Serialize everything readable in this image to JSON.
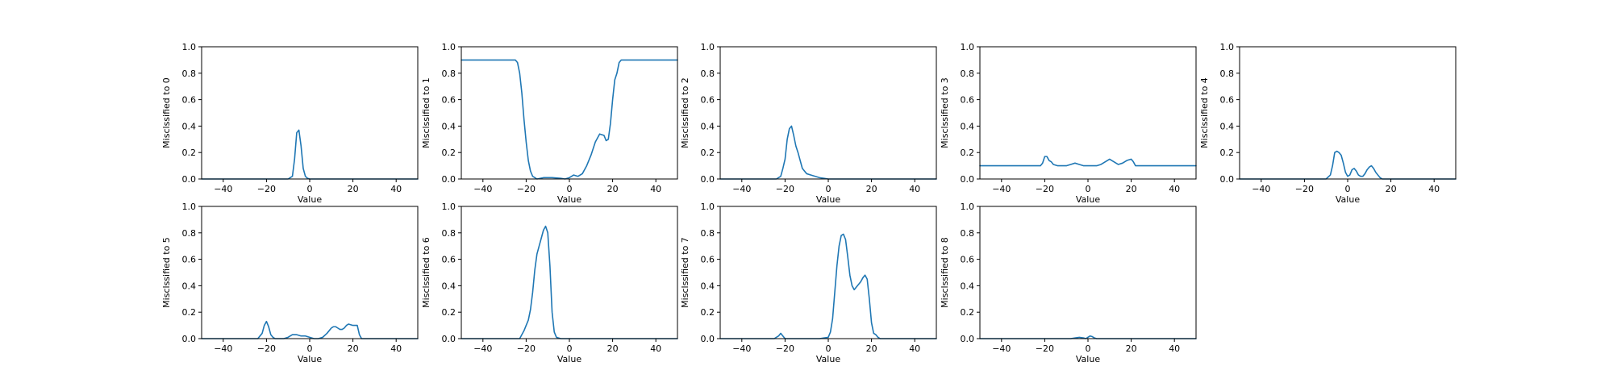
{
  "figure": {
    "line_color": "#1f77b4"
  },
  "chart_data": [
    {
      "type": "line",
      "xlabel": "Value",
      "ylabel": "Misclssified to 0",
      "xlim": [
        -50,
        50
      ],
      "ylim": [
        0,
        1.0
      ],
      "xticks": [
        -40,
        -20,
        0,
        20,
        40
      ],
      "yticks": [
        0.0,
        0.2,
        0.4,
        0.6,
        0.8,
        1.0
      ],
      "series": [
        {
          "x": [
            -50,
            -10,
            -8,
            -7,
            -6,
            -5,
            -4,
            -3,
            -2,
            -1,
            0,
            50
          ],
          "y": [
            0,
            0,
            0.02,
            0.15,
            0.35,
            0.37,
            0.25,
            0.08,
            0.02,
            0.005,
            0,
            0
          ]
        }
      ]
    },
    {
      "type": "line",
      "xlabel": "Value",
      "ylabel": "Misclssified to 1",
      "xlim": [
        -50,
        50
      ],
      "ylim": [
        0,
        1.0
      ],
      "xticks": [
        -40,
        -20,
        0,
        20,
        40
      ],
      "yticks": [
        0.0,
        0.2,
        0.4,
        0.6,
        0.8,
        1.0
      ],
      "series": [
        {
          "x": [
            -50,
            -25,
            -24,
            -23,
            -22,
            -21,
            -20,
            -19,
            -18,
            -17,
            -16,
            -15,
            -12,
            -8,
            -4,
            -2,
            0,
            2,
            4,
            6,
            8,
            10,
            12,
            14,
            16,
            17,
            18,
            19,
            20,
            21,
            22,
            23,
            24,
            25,
            50
          ],
          "y": [
            0.9,
            0.9,
            0.88,
            0.8,
            0.65,
            0.45,
            0.28,
            0.14,
            0.06,
            0.02,
            0.01,
            0,
            0.01,
            0.01,
            0.005,
            0,
            0.01,
            0.03,
            0.02,
            0.04,
            0.1,
            0.18,
            0.28,
            0.34,
            0.33,
            0.29,
            0.3,
            0.42,
            0.6,
            0.75,
            0.8,
            0.88,
            0.9,
            0.9,
            0.9
          ]
        }
      ]
    },
    {
      "type": "line",
      "xlabel": "Value",
      "ylabel": "Misclssified to 2",
      "xlim": [
        -50,
        50
      ],
      "ylim": [
        0,
        1.0
      ],
      "xticks": [
        -40,
        -20,
        0,
        20,
        40
      ],
      "yticks": [
        0.0,
        0.2,
        0.4,
        0.6,
        0.8,
        1.0
      ],
      "series": [
        {
          "x": [
            -50,
            -24,
            -22,
            -21,
            -20,
            -19,
            -18,
            -17,
            -16,
            -15,
            -14,
            -13,
            -12,
            -10,
            -8,
            -6,
            -4,
            -2,
            0,
            50
          ],
          "y": [
            0,
            0,
            0.02,
            0.08,
            0.15,
            0.3,
            0.38,
            0.4,
            0.33,
            0.25,
            0.2,
            0.14,
            0.08,
            0.04,
            0.03,
            0.02,
            0.01,
            0.005,
            0,
            0
          ]
        }
      ]
    },
    {
      "type": "line",
      "xlabel": "Value",
      "ylabel": "Misclssified to 3",
      "xlim": [
        -50,
        50
      ],
      "ylim": [
        0,
        1.0
      ],
      "xticks": [
        -40,
        -20,
        0,
        20,
        40
      ],
      "yticks": [
        0.0,
        0.2,
        0.4,
        0.6,
        0.8,
        1.0
      ],
      "series": [
        {
          "x": [
            -50,
            -22,
            -21,
            -20,
            -19,
            -18,
            -17,
            -16,
            -14,
            -12,
            -10,
            -8,
            -6,
            -4,
            -2,
            0,
            2,
            4,
            6,
            8,
            10,
            12,
            14,
            16,
            18,
            20,
            21,
            22,
            23,
            50
          ],
          "y": [
            0.1,
            0.1,
            0.12,
            0.17,
            0.17,
            0.14,
            0.13,
            0.11,
            0.1,
            0.1,
            0.1,
            0.11,
            0.12,
            0.11,
            0.1,
            0.1,
            0.1,
            0.1,
            0.11,
            0.13,
            0.15,
            0.13,
            0.11,
            0.12,
            0.14,
            0.15,
            0.13,
            0.1,
            0.1,
            0.1
          ]
        }
      ]
    },
    {
      "type": "line",
      "xlabel": "Value",
      "ylabel": "Misclssified to 4",
      "xlim": [
        -50,
        50
      ],
      "ylim": [
        0,
        1.0
      ],
      "xticks": [
        -40,
        -20,
        0,
        20,
        40
      ],
      "yticks": [
        0.0,
        0.2,
        0.4,
        0.6,
        0.8,
        1.0
      ],
      "series": [
        {
          "x": [
            -50,
            -10,
            -8,
            -7,
            -6,
            -5,
            -4,
            -3,
            -2,
            -1,
            0,
            1,
            2,
            3,
            4,
            5,
            6,
            7,
            8,
            9,
            10,
            11,
            12,
            13,
            14,
            15,
            16,
            18,
            50
          ],
          "y": [
            0,
            0,
            0.03,
            0.1,
            0.2,
            0.21,
            0.2,
            0.18,
            0.12,
            0.05,
            0.02,
            0.03,
            0.07,
            0.08,
            0.06,
            0.03,
            0.02,
            0.02,
            0.04,
            0.07,
            0.09,
            0.1,
            0.08,
            0.05,
            0.03,
            0.01,
            0,
            0,
            0
          ]
        }
      ]
    },
    {
      "type": "line",
      "xlabel": "Value",
      "ylabel": "Misclssified to 5",
      "xlim": [
        -50,
        50
      ],
      "ylim": [
        0,
        1.0
      ],
      "xticks": [
        -40,
        -20,
        0,
        20,
        40
      ],
      "yticks": [
        0.0,
        0.2,
        0.4,
        0.6,
        0.8,
        1.0
      ],
      "series": [
        {
          "x": [
            -50,
            -24,
            -22,
            -21,
            -20,
            -19,
            -18,
            -17,
            -16,
            -14,
            -12,
            -10,
            -8,
            -6,
            -4,
            -2,
            0,
            2,
            4,
            6,
            8,
            10,
            11,
            12,
            13,
            14,
            15,
            16,
            17,
            18,
            20,
            22,
            23,
            24,
            50
          ],
          "y": [
            0,
            0,
            0.04,
            0.1,
            0.13,
            0.09,
            0.03,
            0.01,
            0,
            0,
            0,
            0.01,
            0.03,
            0.03,
            0.02,
            0.02,
            0.01,
            0,
            0,
            0.01,
            0.04,
            0.08,
            0.09,
            0.09,
            0.08,
            0.07,
            0.07,
            0.08,
            0.1,
            0.11,
            0.1,
            0.1,
            0.03,
            0,
            0
          ]
        }
      ]
    },
    {
      "type": "line",
      "xlabel": "Value",
      "ylabel": "Misclssified to 6",
      "xlim": [
        -50,
        50
      ],
      "ylim": [
        0,
        1.0
      ],
      "xticks": [
        -40,
        -20,
        0,
        20,
        40
      ],
      "yticks": [
        0.0,
        0.2,
        0.4,
        0.6,
        0.8,
        1.0
      ],
      "series": [
        {
          "x": [
            -50,
            -23,
            -21,
            -20,
            -19,
            -18,
            -17,
            -16,
            -15,
            -14,
            -13,
            -12,
            -11,
            -10,
            -9,
            -8,
            -7,
            -6,
            -4,
            50
          ],
          "y": [
            0,
            0,
            0.06,
            0.1,
            0.14,
            0.22,
            0.35,
            0.52,
            0.64,
            0.7,
            0.76,
            0.82,
            0.85,
            0.8,
            0.55,
            0.2,
            0.05,
            0.01,
            0,
            0
          ]
        }
      ]
    },
    {
      "type": "line",
      "xlabel": "Value",
      "ylabel": "Misclssified to 7",
      "xlim": [
        -50,
        50
      ],
      "ylim": [
        0,
        1.0
      ],
      "xticks": [
        -40,
        -20,
        0,
        20,
        40
      ],
      "yticks": [
        0.0,
        0.2,
        0.4,
        0.6,
        0.8,
        1.0
      ],
      "series": [
        {
          "x": [
            -50,
            -25,
            -23,
            -22,
            -21,
            -20,
            -18,
            -16,
            -14,
            -12,
            -10,
            -8,
            -6,
            -4,
            -2,
            0,
            1,
            2,
            3,
            4,
            5,
            6,
            7,
            8,
            9,
            10,
            11,
            12,
            13,
            14,
            15,
            16,
            17,
            18,
            19,
            20,
            21,
            22,
            23,
            24,
            25,
            26,
            50
          ],
          "y": [
            0,
            0,
            0.02,
            0.04,
            0.02,
            0,
            0,
            0,
            0,
            0,
            0,
            0,
            0,
            0,
            0.005,
            0.01,
            0.05,
            0.15,
            0.35,
            0.55,
            0.7,
            0.78,
            0.79,
            0.75,
            0.62,
            0.48,
            0.4,
            0.37,
            0.39,
            0.41,
            0.43,
            0.46,
            0.48,
            0.45,
            0.3,
            0.12,
            0.04,
            0.03,
            0.01,
            0,
            0,
            0,
            0
          ]
        }
      ]
    },
    {
      "type": "line",
      "xlabel": "Value",
      "ylabel": "Misclssified to 8",
      "xlim": [
        -50,
        50
      ],
      "ylim": [
        0,
        1.0
      ],
      "xticks": [
        -40,
        -20,
        0,
        20,
        40
      ],
      "yticks": [
        0.0,
        0.2,
        0.4,
        0.6,
        0.8,
        1.0
      ],
      "series": [
        {
          "x": [
            -50,
            -8,
            -6,
            -4,
            -2,
            -1,
            0,
            1,
            2,
            3,
            4,
            50
          ],
          "y": [
            0,
            0,
            0.005,
            0.01,
            0.005,
            0,
            0.01,
            0.02,
            0.015,
            0.005,
            0,
            0
          ]
        }
      ]
    }
  ]
}
